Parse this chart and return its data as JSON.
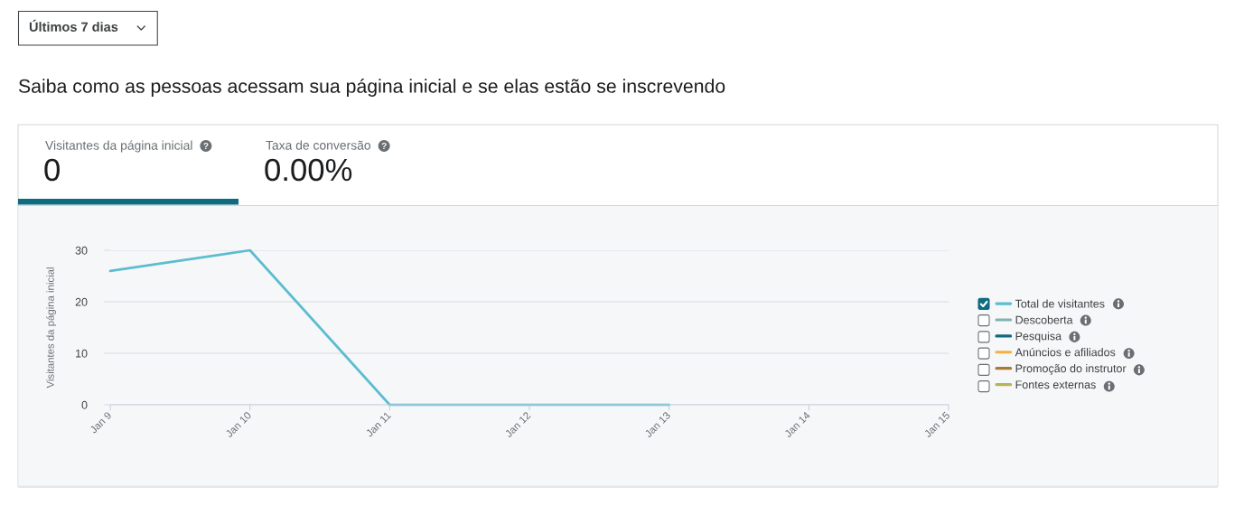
{
  "chart_data": {
    "type": "line",
    "title": "Saiba como as pessoas acessam sua página inicial e se elas estão se inscrevendo",
    "annotations": [
      "Últimos 7 dias",
      "Visitantes da página inicial",
      "0",
      "Taxa de conversão",
      "0.00%"
    ],
    "ylabel": "Visitantes da página inicial",
    "x": [
      "--01-09",
      "--01-10",
      "--01-11",
      "--01-12",
      "--01-13"
    ],
    "series": [
      {
        "name": "Total de visitantes",
        "color": "#5bbdcf",
        "values": [
          26,
          30,
          0,
          0,
          0
        ]
      },
      {
        "name": "Descoberta",
        "color": "#7fb3ae",
        "values": [
          null,
          null,
          null,
          null,
          null
        ]
      },
      {
        "name": "Pesquisa",
        "color": "#0d6a7e",
        "values": [
          null,
          null,
          null,
          null,
          null
        ]
      },
      {
        "name": "Anúncios e afiliados",
        "color": "#f6b042",
        "values": [
          null,
          null,
          null,
          null,
          null
        ]
      },
      {
        "name": "Promoção do instrutor",
        "color": "#a77d35",
        "values": [
          null,
          null,
          null,
          null,
          null
        ]
      },
      {
        "name": "Fontes externas",
        "color": "#b6b457",
        "values": [
          null,
          null,
          null,
          null,
          null
        ]
      }
    ],
    "xlim": [
      "--01-09",
      "--01-15"
    ],
    "xticks": [
      {
        "value": "--01-09",
        "label": "Jan 9"
      },
      {
        "value": "--01-10",
        "label": "Jan 10"
      },
      {
        "value": "--01-11",
        "label": "Jan 11"
      },
      {
        "value": "--01-12",
        "label": "Jan 12"
      },
      {
        "value": "--01-13",
        "label": "Jan 13"
      },
      {
        "value": "--01-14",
        "label": "Jan 14"
      },
      {
        "value": "--01-15",
        "label": "Jan 15"
      }
    ],
    "ylim": [
      0,
      30
    ],
    "yticks": [
      0,
      10,
      20,
      30
    ],
    "grid": "y",
    "legend": "right"
  }
}
